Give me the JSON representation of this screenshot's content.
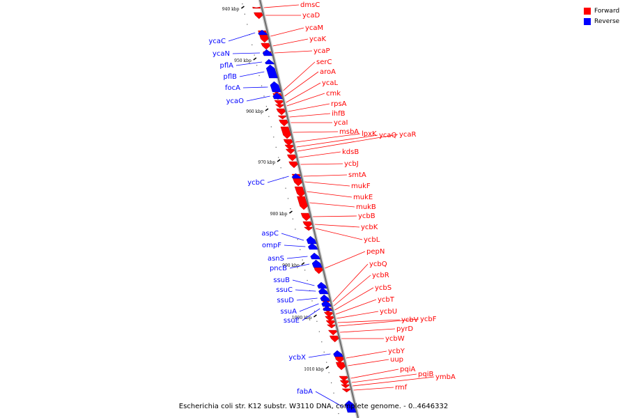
{
  "legend": {
    "forward_label": "Forward",
    "reverse_label": "Reverse",
    "forward_color": "#ff0000",
    "reverse_color": "#0000ff"
  },
  "footer": {
    "text": "Escherichia coli str. K12 substr. W3110 DNA, complete genome. - 0..4646332"
  },
  "ticks": [
    "940 kbp",
    "950 kbp",
    "960 kbp",
    "970 kbp",
    "980 kbp",
    "990 kbp",
    "1000 kbp",
    "1010 kbp"
  ],
  "genes": [
    {
      "name": "dmsC",
      "strand": "forward"
    },
    {
      "name": "ycaD",
      "strand": "forward"
    },
    {
      "name": "ycaM",
      "strand": "forward"
    },
    {
      "name": "ycaK",
      "strand": "forward"
    },
    {
      "name": "ycaP",
      "strand": "forward"
    },
    {
      "name": "serC",
      "strand": "forward"
    },
    {
      "name": "aroA",
      "strand": "forward"
    },
    {
      "name": "ycaL",
      "strand": "forward"
    },
    {
      "name": "cmk",
      "strand": "forward"
    },
    {
      "name": "rpsA",
      "strand": "forward"
    },
    {
      "name": "ihfB",
      "strand": "forward"
    },
    {
      "name": "ycaI",
      "strand": "forward"
    },
    {
      "name": "msbA",
      "strand": "forward"
    },
    {
      "name": "lpxK",
      "strand": "forward"
    },
    {
      "name": "ycaQ",
      "strand": "forward"
    },
    {
      "name": "ycaR",
      "strand": "forward"
    },
    {
      "name": "kdsB",
      "strand": "forward"
    },
    {
      "name": "ycbJ",
      "strand": "forward"
    },
    {
      "name": "smtA",
      "strand": "forward"
    },
    {
      "name": "mukF",
      "strand": "forward"
    },
    {
      "name": "mukE",
      "strand": "forward"
    },
    {
      "name": "mukB",
      "strand": "forward"
    },
    {
      "name": "ycbB",
      "strand": "forward"
    },
    {
      "name": "ycbK",
      "strand": "forward"
    },
    {
      "name": "ycbL",
      "strand": "forward"
    },
    {
      "name": "pepN",
      "strand": "forward"
    },
    {
      "name": "ycbQ",
      "strand": "forward"
    },
    {
      "name": "ycbR",
      "strand": "forward"
    },
    {
      "name": "ycbS",
      "strand": "forward"
    },
    {
      "name": "ycbT",
      "strand": "forward"
    },
    {
      "name": "ycbU",
      "strand": "forward"
    },
    {
      "name": "ycbV",
      "strand": "forward"
    },
    {
      "name": "ycbF",
      "strand": "forward"
    },
    {
      "name": "pyrD",
      "strand": "forward"
    },
    {
      "name": "ycbW",
      "strand": "forward"
    },
    {
      "name": "ycbY",
      "strand": "forward"
    },
    {
      "name": "uup",
      "strand": "forward"
    },
    {
      "name": "pqiA",
      "strand": "forward"
    },
    {
      "name": "pqiB",
      "strand": "forward"
    },
    {
      "name": "ymbA",
      "strand": "forward"
    },
    {
      "name": "rmf",
      "strand": "forward"
    },
    {
      "name": "ycaC",
      "strand": "reverse"
    },
    {
      "name": "ycaN",
      "strand": "reverse"
    },
    {
      "name": "pflA",
      "strand": "reverse"
    },
    {
      "name": "pflB",
      "strand": "reverse"
    },
    {
      "name": "focA",
      "strand": "reverse"
    },
    {
      "name": "ycaO",
      "strand": "reverse"
    },
    {
      "name": "ycbC",
      "strand": "reverse"
    },
    {
      "name": "aspC",
      "strand": "reverse"
    },
    {
      "name": "ompF",
      "strand": "reverse"
    },
    {
      "name": "asnS",
      "strand": "reverse"
    },
    {
      "name": "pncB",
      "strand": "reverse"
    },
    {
      "name": "ssuB",
      "strand": "reverse"
    },
    {
      "name": "ssuC",
      "strand": "reverse"
    },
    {
      "name": "ssuD",
      "strand": "reverse"
    },
    {
      "name": "ssuA",
      "strand": "reverse"
    },
    {
      "name": "ssuE",
      "strand": "reverse"
    },
    {
      "name": "ycbX",
      "strand": "reverse"
    },
    {
      "name": "fabA",
      "strand": "reverse"
    }
  ]
}
